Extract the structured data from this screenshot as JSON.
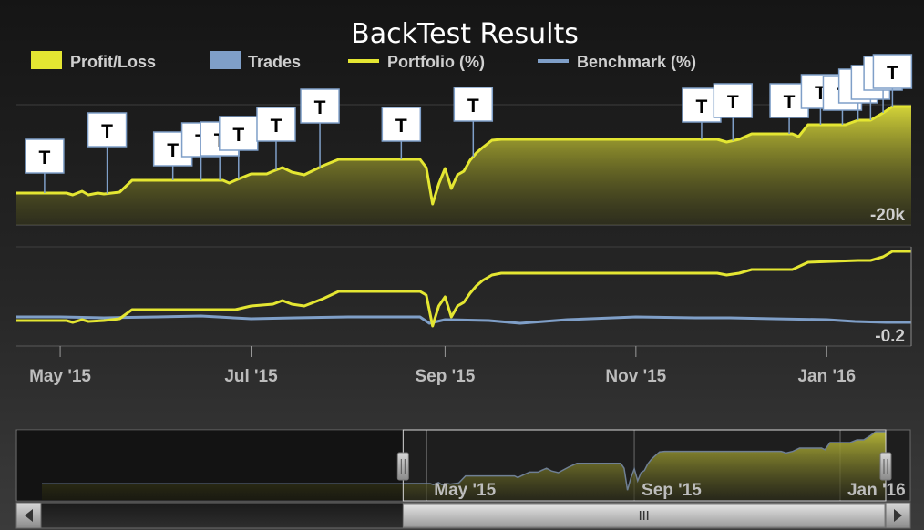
{
  "chart_data": {
    "type": "line",
    "title": "BackTest Results",
    "legend": {
      "placement": "top",
      "items": [
        {
          "label": "Profit/Loss",
          "kind": "area",
          "color": "#e4e632"
        },
        {
          "label": "Trades",
          "kind": "area",
          "color": "#7f9fc8"
        },
        {
          "label": "Portfolio (%)",
          "kind": "line",
          "color": "#e4e632"
        },
        {
          "label": "Benchmark (%)",
          "kind": "line",
          "color": "#7f9fc8"
        }
      ]
    },
    "x_range": [
      "2015-04-17",
      "2016-01-28"
    ],
    "x_ticks": [
      "May '15",
      "Jul '15",
      "Sep '15",
      "Nov '15",
      "Jan '16"
    ],
    "x_tick_dates": [
      "2015-05-01",
      "2015-07-01",
      "2015-09-01",
      "2015-11-01",
      "2016-01-01"
    ],
    "navigator_ticks": [
      "May '15",
      "Sep '15",
      "Jan '16"
    ],
    "navigator_tick_dates": [
      "2015-05-01",
      "2015-09-01",
      "2016-01-01"
    ],
    "upper_panel": {
      "series": "Profit/Loss",
      "axis_label": "-20k",
      "axis_label_value": -20000,
      "values": [
        [
          "2015-04-17",
          0
        ],
        [
          "2015-04-26",
          0
        ],
        [
          "2015-05-03",
          0
        ],
        [
          "2015-05-05",
          -2
        ],
        [
          "2015-05-08",
          2
        ],
        [
          "2015-05-10",
          -2
        ],
        [
          "2015-05-13",
          0
        ],
        [
          "2015-05-15",
          -1
        ],
        [
          "2015-05-20",
          1
        ],
        [
          "2015-05-24",
          14
        ],
        [
          "2015-06-01",
          14
        ],
        [
          "2015-06-14",
          14
        ],
        [
          "2015-06-22",
          14
        ],
        [
          "2015-06-24",
          11
        ],
        [
          "2015-06-26",
          14
        ],
        [
          "2015-07-01",
          21
        ],
        [
          "2015-07-06",
          21
        ],
        [
          "2015-07-08",
          24
        ],
        [
          "2015-07-11",
          28
        ],
        [
          "2015-07-14",
          23
        ],
        [
          "2015-07-18",
          20
        ],
        [
          "2015-07-24",
          30
        ],
        [
          "2015-07-29",
          37
        ],
        [
          "2015-08-09",
          37
        ],
        [
          "2015-08-24",
          37
        ],
        [
          "2015-08-26",
          28
        ],
        [
          "2015-08-28",
          -12
        ],
        [
          "2015-08-30",
          10
        ],
        [
          "2015-09-01",
          27
        ],
        [
          "2015-09-03",
          5
        ],
        [
          "2015-09-05",
          20
        ],
        [
          "2015-09-07",
          24
        ],
        [
          "2015-09-09",
          36
        ],
        [
          "2015-09-11",
          44
        ],
        [
          "2015-09-13",
          50
        ],
        [
          "2015-09-16",
          58
        ],
        [
          "2015-09-19",
          59
        ],
        [
          "2015-10-10",
          59
        ],
        [
          "2015-11-01",
          59
        ],
        [
          "2015-11-21",
          59
        ],
        [
          "2015-11-27",
          59
        ],
        [
          "2015-11-30",
          56
        ],
        [
          "2015-12-04",
          59
        ],
        [
          "2015-12-08",
          65
        ],
        [
          "2015-12-14",
          65
        ],
        [
          "2015-12-21",
          65
        ],
        [
          "2015-12-23",
          62
        ],
        [
          "2015-12-26",
          75
        ],
        [
          "2016-01-03",
          75
        ],
        [
          "2016-01-07",
          75
        ],
        [
          "2016-01-11",
          80
        ],
        [
          "2016-01-15",
          80
        ],
        [
          "2016-01-19",
          88
        ],
        [
          "2016-01-22",
          95
        ],
        [
          "2016-01-28",
          95
        ]
      ]
    },
    "trades": [
      {
        "date": "2015-04-26",
        "label": "T"
      },
      {
        "date": "2015-05-16",
        "label": "T"
      },
      {
        "date": "2015-06-06",
        "label": "T"
      },
      {
        "date": "2015-06-15",
        "label": "T"
      },
      {
        "date": "2015-06-21",
        "label": "T"
      },
      {
        "date": "2015-06-27",
        "label": "T"
      },
      {
        "date": "2015-07-09",
        "label": "T"
      },
      {
        "date": "2015-07-23",
        "label": "T"
      },
      {
        "date": "2015-08-18",
        "label": "T"
      },
      {
        "date": "2015-09-10",
        "label": "T"
      },
      {
        "date": "2015-11-22",
        "label": "T"
      },
      {
        "date": "2015-12-02",
        "label": "T"
      },
      {
        "date": "2015-12-20",
        "label": "T"
      },
      {
        "date": "2015-12-30",
        "label": "T"
      },
      {
        "date": "2016-01-06",
        "label": "T"
      },
      {
        "date": "2016-01-11",
        "label": "T"
      },
      {
        "date": "2016-01-15",
        "label": "T"
      },
      {
        "date": "2016-01-19",
        "label": "T"
      },
      {
        "date": "2016-01-22",
        "label": "T"
      }
    ],
    "lower_panel": {
      "axis_label": "-0.2",
      "axis_label_value": -0.2,
      "series": [
        {
          "name": "Portfolio (%)",
          "color": "#e4e632",
          "values": [
            [
              "2015-04-17",
              -0.2
            ],
            [
              "2015-05-03",
              -0.2
            ],
            [
              "2015-05-05",
              -0.21
            ],
            [
              "2015-05-08",
              -0.195
            ],
            [
              "2015-05-10",
              -0.205
            ],
            [
              "2015-05-15",
              -0.2
            ],
            [
              "2015-05-20",
              -0.19
            ],
            [
              "2015-05-24",
              -0.14
            ],
            [
              "2015-06-26",
              -0.14
            ],
            [
              "2015-07-01",
              -0.12
            ],
            [
              "2015-07-08",
              -0.11
            ],
            [
              "2015-07-11",
              -0.09
            ],
            [
              "2015-07-14",
              -0.11
            ],
            [
              "2015-07-18",
              -0.12
            ],
            [
              "2015-07-24",
              -0.08
            ],
            [
              "2015-07-29",
              -0.04
            ],
            [
              "2015-08-24",
              -0.04
            ],
            [
              "2015-08-26",
              -0.06
            ],
            [
              "2015-08-28",
              -0.23
            ],
            [
              "2015-08-30",
              -0.12
            ],
            [
              "2015-09-01",
              -0.07
            ],
            [
              "2015-09-03",
              -0.18
            ],
            [
              "2015-09-05",
              -0.12
            ],
            [
              "2015-09-07",
              -0.1
            ],
            [
              "2015-09-09",
              -0.05
            ],
            [
              "2015-09-11",
              -0.01
            ],
            [
              "2015-09-13",
              0.02
            ],
            [
              "2015-09-16",
              0.05
            ],
            [
              "2015-09-19",
              0.06
            ],
            [
              "2015-11-27",
              0.06
            ],
            [
              "2015-11-30",
              0.05
            ],
            [
              "2015-12-04",
              0.06
            ],
            [
              "2015-12-08",
              0.08
            ],
            [
              "2015-12-21",
              0.08
            ],
            [
              "2015-12-26",
              0.12
            ],
            [
              "2016-01-11",
              0.13
            ],
            [
              "2016-01-15",
              0.13
            ],
            [
              "2016-01-19",
              0.15
            ],
            [
              "2016-01-22",
              0.18
            ],
            [
              "2016-01-28",
              0.18
            ]
          ]
        },
        {
          "name": "Benchmark (%)",
          "color": "#7f9fc8",
          "values": [
            [
              "2015-04-17",
              -0.18
            ],
            [
              "2015-05-01",
              -0.18
            ],
            [
              "2015-05-15",
              -0.185
            ],
            [
              "2015-06-01",
              -0.18
            ],
            [
              "2015-06-15",
              -0.175
            ],
            [
              "2015-07-01",
              -0.19
            ],
            [
              "2015-07-15",
              -0.185
            ],
            [
              "2015-08-01",
              -0.18
            ],
            [
              "2015-08-24",
              -0.18
            ],
            [
              "2015-08-27",
              -0.215
            ],
            [
              "2015-09-01",
              -0.195
            ],
            [
              "2015-09-15",
              -0.2
            ],
            [
              "2015-09-25",
              -0.215
            ],
            [
              "2015-10-10",
              -0.195
            ],
            [
              "2015-11-01",
              -0.18
            ],
            [
              "2015-11-20",
              -0.185
            ],
            [
              "2015-12-01",
              -0.185
            ],
            [
              "2015-12-15",
              -0.19
            ],
            [
              "2016-01-01",
              -0.195
            ],
            [
              "2016-01-10",
              -0.205
            ],
            [
              "2016-01-20",
              -0.21
            ],
            [
              "2016-01-28",
              -0.21
            ]
          ]
        }
      ]
    },
    "navigator": {
      "range_start": "2014-09-15",
      "range_end": "2016-01-28",
      "selected_start": "2015-04-17",
      "selected_end": "2016-01-28"
    }
  }
}
